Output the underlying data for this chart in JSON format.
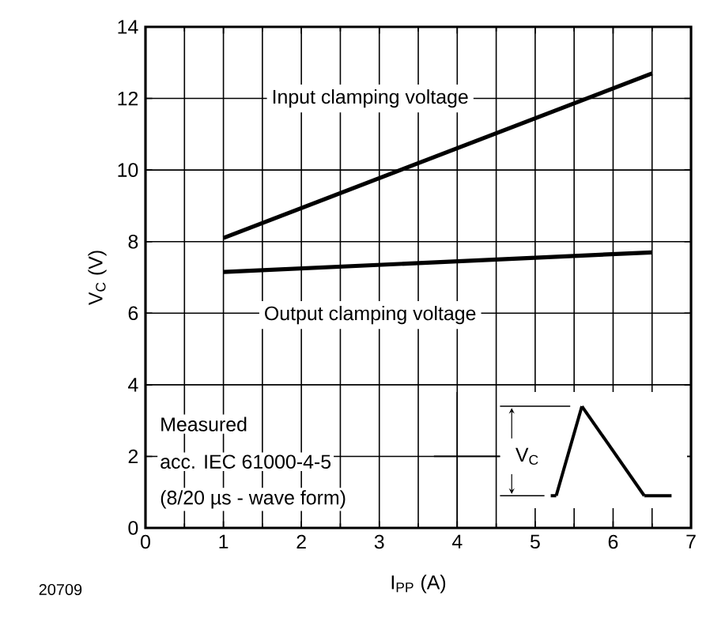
{
  "chart_data": {
    "type": "line",
    "xlabel": "I$_{PP}$ (A)",
    "ylabel": "V$_{C}$ (V)",
    "series": [
      {
        "name": "Input clamping voltage",
        "color": "#000000",
        "values": [
          8.1,
          12.7
        ]
      },
      {
        "name": "Output clamping voltage",
        "color": "#000000",
        "values": [
          7.15,
          7.7
        ]
      }
    ],
    "x": [
      1,
      6.5
    ],
    "xlim": [
      0,
      7
    ],
    "ylim": [
      0,
      14
    ],
    "xticks": [
      0,
      1,
      2,
      3,
      4,
      5,
      6,
      7
    ],
    "yticks": [
      0,
      2,
      4,
      6,
      8,
      10,
      12,
      14
    ],
    "grid": true,
    "marker": "none",
    "line_style": "solid",
    "annotations": [
      "Measured",
      "acc. IEC 61000-4-5",
      "(8/20 µs - wave form)",
      "V$_{C}$",
      "20709"
    ]
  }
}
